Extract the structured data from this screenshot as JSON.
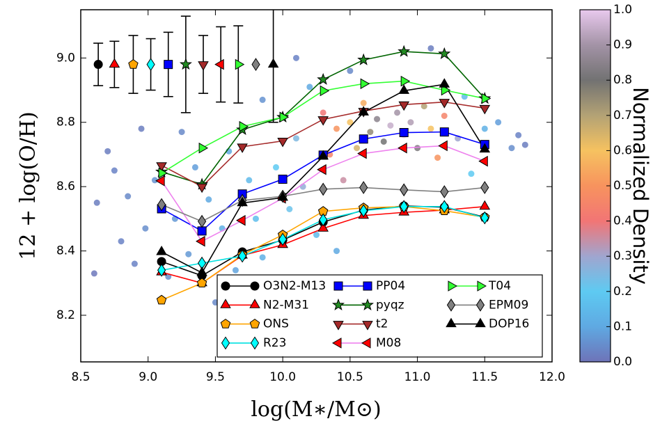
{
  "chart_data": {
    "type": "line",
    "x_label": "log(M∗/M⊙)",
    "y_label": "12 + log(O/H)",
    "x": [
      9.1,
      9.4,
      9.7,
      10.0,
      10.3,
      10.6,
      10.9,
      11.2,
      11.5
    ],
    "xlim": [
      8.5,
      12.0
    ],
    "ylim": [
      8.055,
      9.15
    ],
    "xticks": [
      8.5,
      {
        "value": 9,
        "label": "9.0"
      },
      9.5,
      {
        "value": 10,
        "label": "10.0"
      },
      10.5,
      {
        "value": 11,
        "label": "11.0"
      },
      11.5,
      {
        "value": 12,
        "label": "12.0"
      }
    ],
    "yticks": [
      8.2,
      8.4,
      8.6,
      8.8,
      {
        "value": 9,
        "label": "9.0"
      }
    ],
    "legend": "lower right",
    "series": [
      {
        "name": "O3N2-M13",
        "color": "#000000",
        "line_color": "#000000",
        "marker": "circle",
        "values": [
          8.367,
          8.323,
          8.397,
          8.434,
          8.49,
          8.527,
          8.54,
          8.536,
          8.505
        ],
        "ref_x": 8.63,
        "ref_y": 8.98,
        "ref_err": 0.066
      },
      {
        "name": "N2-M31",
        "color": "#ff0000",
        "line_color": "#ff0000",
        "marker": "triangle-up",
        "values": [
          8.334,
          8.3,
          8.386,
          8.419,
          8.47,
          8.51,
          8.52,
          8.527,
          8.538
        ],
        "ref_x": 8.75,
        "ref_y": 8.98,
        "ref_err": 0.072
      },
      {
        "name": "ONS",
        "color": "#ffa500",
        "line_color": "#ffa500",
        "marker": "pentagon",
        "values": [
          8.247,
          8.3,
          8.388,
          8.45,
          8.523,
          8.534,
          8.538,
          8.525,
          8.505
        ],
        "ref_x": 8.89,
        "ref_y": 8.98,
        "ref_err": 0.09
      },
      {
        "name": "R23",
        "color": "#00ffff",
        "line_color": "#00e0e0",
        "marker": "diamond",
        "values": [
          8.34,
          8.362,
          8.384,
          8.436,
          8.497,
          8.525,
          8.538,
          8.538,
          8.503
        ],
        "ref_x": 9.02,
        "ref_y": 8.98,
        "ref_err": 0.08
      },
      {
        "name": "PP04",
        "color": "#0000ff",
        "line_color": "#0000ff",
        "marker": "square",
        "values": [
          8.531,
          8.462,
          8.577,
          8.623,
          8.698,
          8.748,
          8.768,
          8.77,
          8.731
        ],
        "ref_x": 9.15,
        "ref_y": 8.98,
        "ref_err": 0.1
      },
      {
        "name": "pyqz",
        "color": "#228b22",
        "line_color": "#006400",
        "marker": "star",
        "values": [
          8.646,
          8.607,
          8.777,
          8.816,
          8.933,
          8.994,
          9.02,
          9.013,
          8.874
        ],
        "ref_x": 9.28,
        "ref_y": 8.98,
        "ref_err": 0.15
      },
      {
        "name": "t2",
        "color": "#a52a2a",
        "line_color": "#a52a2a",
        "marker": "triangle-down",
        "values": [
          8.666,
          8.6,
          8.724,
          8.742,
          8.809,
          8.835,
          8.855,
          8.863,
          8.844
        ],
        "ref_x": 9.41,
        "ref_y": 8.98,
        "ref_err": 0.09
      },
      {
        "name": "M08",
        "color": "#ff0000",
        "line_color": "#ee82ee",
        "marker": "triangle-left",
        "values": [
          8.618,
          8.43,
          8.495,
          8.564,
          8.653,
          8.703,
          8.72,
          8.727,
          8.679
        ],
        "ref_x": 9.54,
        "ref_y": 8.98,
        "ref_err": 0.117
      },
      {
        "name": "T04",
        "color": "#33ff33",
        "line_color": "#33ff33",
        "marker": "triangle-right",
        "values": [
          8.642,
          8.72,
          8.787,
          8.816,
          8.898,
          8.92,
          8.928,
          8.9,
          8.874
        ],
        "ref_x": 9.67,
        "ref_y": 8.98,
        "ref_err": 0.12
      },
      {
        "name": "EPM09",
        "color": "#808080",
        "line_color": "#808080",
        "marker": "diamond",
        "values": [
          8.544,
          8.492,
          8.557,
          8.57,
          8.592,
          8.597,
          8.59,
          8.584,
          8.597
        ],
        "ref_x": 9.8,
        "ref_y": 8.98,
        "ref_err": null
      },
      {
        "name": "DOP16",
        "color": "#000000",
        "line_color": "#000000",
        "marker": "triangle-up",
        "values": [
          8.397,
          8.332,
          8.549,
          8.566,
          8.694,
          8.831,
          8.898,
          8.918,
          8.716
        ],
        "ref_x": 9.93,
        "ref_y": 8.98,
        "ref_err": 0.18
      }
    ],
    "density_points": {
      "x": [
        8.62,
        8.6,
        8.7,
        8.75,
        8.8,
        8.85,
        8.9,
        8.95,
        8.98,
        9.05,
        9.15,
        9.2,
        9.25,
        9.3,
        9.35,
        9.45,
        9.5,
        9.55,
        9.6,
        9.65,
        9.75,
        9.8,
        9.85,
        9.9,
        9.95,
        10.05,
        10.1,
        10.15,
        10.2,
        10.25,
        10.3,
        10.35,
        10.4,
        10.45,
        10.5,
        10.55,
        10.6,
        10.65,
        10.7,
        10.75,
        10.8,
        10.85,
        10.9,
        10.95,
        11.0,
        11.05,
        11.1,
        11.15,
        11.2,
        11.3,
        11.35,
        11.4,
        11.5,
        11.6,
        11.7,
        11.75,
        11.8,
        10.5,
        10.1,
        11.1,
        9.85,
        10.4,
        10.0
      ],
      "y": [
        8.55,
        8.33,
        8.71,
        8.65,
        8.43,
        8.57,
        8.36,
        8.78,
        8.47,
        8.62,
        8.32,
        8.5,
        8.77,
        8.39,
        8.66,
        8.56,
        8.24,
        8.47,
        8.71,
        8.34,
        8.62,
        8.5,
        8.87,
        8.28,
        8.66,
        8.53,
        8.75,
        8.6,
        8.91,
        8.45,
        8.83,
        8.7,
        8.78,
        8.62,
        8.8,
        8.72,
        8.86,
        8.77,
        8.81,
        8.74,
        8.79,
        8.83,
        8.76,
        8.8,
        8.72,
        8.85,
        8.78,
        8.69,
        8.82,
        8.75,
        8.88,
        8.64,
        8.78,
        8.8,
        8.72,
        8.76,
        8.73,
        8.96,
        9.0,
        9.03,
        8.38,
        8.4,
        8.3
      ],
      "density": [
        0.02,
        0.01,
        0.02,
        0.03,
        0.03,
        0.04,
        0.03,
        0.02,
        0.05,
        0.06,
        0.05,
        0.07,
        0.04,
        0.07,
        0.08,
        0.1,
        0.04,
        0.12,
        0.1,
        0.09,
        0.15,
        0.16,
        0.06,
        0.05,
        0.2,
        0.22,
        0.25,
        0.28,
        0.1,
        0.15,
        0.4,
        0.45,
        0.5,
        0.35,
        0.6,
        0.65,
        0.55,
        0.75,
        0.85,
        0.8,
        0.95,
        0.9,
        1.0,
        0.92,
        0.82,
        0.7,
        0.6,
        0.5,
        0.45,
        0.3,
        0.15,
        0.2,
        0.12,
        0.08,
        0.05,
        0.03,
        0.02,
        0.04,
        0.03,
        0.02,
        0.12,
        0.1,
        0.06
      ]
    },
    "colormap": [
      "#6e73b8",
      "#5fa9e2",
      "#5ecaf2",
      "#a0a5cf",
      "#f27575",
      "#f7935e",
      "#f6c260",
      "#b3a275",
      "#727272",
      "#a393a6",
      "#e9c9ee"
    ],
    "colorbar_label": "Normalized Density",
    "colorbar_lim": [
      0,
      1
    ],
    "colorbar_ticks": [
      {
        "value": 0,
        "label": "0.0"
      },
      0.1,
      0.2,
      0.3,
      0.4,
      0.5,
      0.6,
      0.7,
      0.8,
      0.9,
      {
        "value": 1,
        "label": "1.0"
      }
    ]
  }
}
